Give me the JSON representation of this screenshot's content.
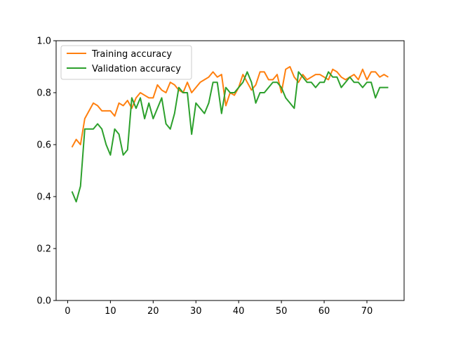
{
  "chart_data": {
    "type": "line",
    "title": "",
    "xlabel": "",
    "ylabel": "",
    "xlim": [
      -2.7,
      78.7
    ],
    "ylim": [
      0.0,
      1.0
    ],
    "x_ticks": [
      0,
      10,
      20,
      30,
      40,
      50,
      60,
      70
    ],
    "y_ticks": [
      0.0,
      0.2,
      0.4,
      0.6,
      0.8,
      1.0
    ],
    "x_tick_labels": [
      "0",
      "10",
      "20",
      "30",
      "40",
      "50",
      "60",
      "70"
    ],
    "y_tick_labels": [
      "0.0",
      "0.2",
      "0.4",
      "0.6",
      "0.8",
      "1.0"
    ],
    "grid": false,
    "legend_position": "top-left",
    "x": [
      1,
      2,
      3,
      4,
      5,
      6,
      7,
      8,
      9,
      10,
      11,
      12,
      13,
      14,
      15,
      16,
      17,
      18,
      19,
      20,
      21,
      22,
      23,
      24,
      25,
      26,
      27,
      28,
      29,
      30,
      31,
      32,
      33,
      34,
      35,
      36,
      37,
      38,
      39,
      40,
      41,
      42,
      43,
      44,
      45,
      46,
      47,
      48,
      49,
      50,
      51,
      52,
      53,
      54,
      55,
      56,
      57,
      58,
      59,
      60,
      61,
      62,
      63,
      64,
      65,
      66,
      67,
      68,
      69,
      70,
      71,
      72,
      73,
      74,
      75
    ],
    "series": [
      {
        "name": "Training accuracy",
        "color": "#ff7f0e",
        "values": [
          0.59,
          0.62,
          0.6,
          0.7,
          0.73,
          0.76,
          0.75,
          0.73,
          0.73,
          0.73,
          0.71,
          0.76,
          0.75,
          0.77,
          0.74,
          0.78,
          0.8,
          0.79,
          0.78,
          0.78,
          0.83,
          0.81,
          0.8,
          0.84,
          0.83,
          0.81,
          0.8,
          0.84,
          0.8,
          0.82,
          0.84,
          0.85,
          0.86,
          0.88,
          0.86,
          0.87,
          0.75,
          0.8,
          0.79,
          0.82,
          0.87,
          0.84,
          0.81,
          0.83,
          0.88,
          0.88,
          0.85,
          0.85,
          0.87,
          0.8,
          0.89,
          0.9,
          0.86,
          0.84,
          0.87,
          0.85,
          0.86,
          0.87,
          0.87,
          0.86,
          0.85,
          0.89,
          0.88,
          0.86,
          0.85,
          0.86,
          0.87,
          0.85,
          0.89,
          0.85,
          0.88,
          0.88,
          0.86,
          0.87,
          0.86
        ]
      },
      {
        "name": "Validation accuracy",
        "color": "#2ca02c",
        "values": [
          0.42,
          0.38,
          0.44,
          0.66,
          0.66,
          0.66,
          0.68,
          0.66,
          0.6,
          0.56,
          0.66,
          0.64,
          0.56,
          0.58,
          0.78,
          0.74,
          0.78,
          0.7,
          0.76,
          0.7,
          0.74,
          0.78,
          0.68,
          0.66,
          0.72,
          0.82,
          0.8,
          0.8,
          0.64,
          0.76,
          0.74,
          0.72,
          0.76,
          0.84,
          0.84,
          0.72,
          0.82,
          0.8,
          0.8,
          0.82,
          0.84,
          0.88,
          0.84,
          0.76,
          0.8,
          0.8,
          0.82,
          0.84,
          0.84,
          0.82,
          0.78,
          0.76,
          0.74,
          0.88,
          0.86,
          0.84,
          0.84,
          0.82,
          0.84,
          0.84,
          0.88,
          0.86,
          0.86,
          0.82,
          0.84,
          0.86,
          0.84,
          0.84,
          0.82,
          0.84,
          0.84,
          0.78,
          0.82,
          0.82,
          0.82
        ]
      }
    ]
  }
}
